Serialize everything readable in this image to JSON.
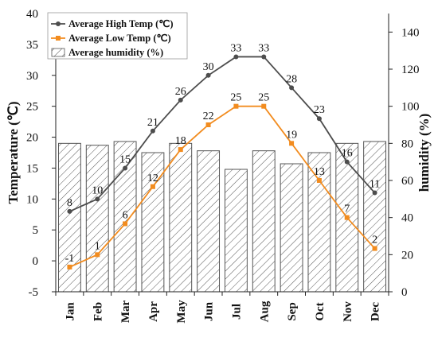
{
  "chart_data": {
    "type": "bar+line",
    "categories": [
      "Jan",
      "Feb",
      "Mar",
      "Apr",
      "May",
      "Jun",
      "Jul",
      "Aug",
      "Sep",
      "Oct",
      "Nov",
      "Dec"
    ],
    "series": [
      {
        "name": "Average High Temp (℃)",
        "kind": "line",
        "axis": "left",
        "color": "#4d4d4d",
        "values": [
          8,
          10,
          15,
          21,
          26,
          30,
          33,
          33,
          28,
          23,
          16,
          11
        ]
      },
      {
        "name": "Average Low Temp (℃)",
        "kind": "line",
        "axis": "left",
        "color": "#f28c1f",
        "values": [
          -1,
          1,
          6,
          12,
          18,
          22,
          25,
          25,
          19,
          13,
          7,
          2
        ]
      },
      {
        "name": "Average humidity (%)",
        "kind": "bar",
        "axis": "right",
        "pattern": "diagonal-hatch",
        "values": [
          80,
          79,
          81,
          75,
          80,
          76,
          66,
          76,
          69,
          75,
          80,
          81
        ]
      }
    ],
    "ylabel": "Temperature (℃)",
    "y2label": "humidity (%)",
    "ylim": [
      -5,
      40
    ],
    "y2lim": [
      0,
      150
    ],
    "yticks": [
      -5,
      0,
      5,
      10,
      15,
      20,
      25,
      30,
      35,
      40
    ],
    "y2ticks": [
      0,
      20,
      40,
      60,
      80,
      100,
      120,
      140
    ],
    "legend_position": "top-left",
    "grid": false
  }
}
